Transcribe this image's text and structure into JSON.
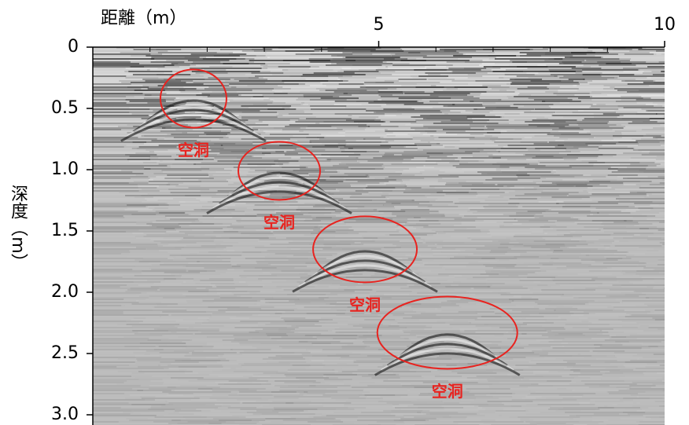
{
  "chart_data": {
    "type": "radargram",
    "x_label": "距離（m）",
    "y_label": "深度（m）",
    "xlim": [
      0,
      10
    ],
    "xticks": [
      5,
      10
    ],
    "xminor_ticks": [
      1,
      2,
      3,
      4,
      6,
      7,
      8,
      9
    ],
    "ylim": [
      0,
      3
    ],
    "y_inverted": true,
    "yticks": [
      0,
      0.5,
      {
        "value": 1,
        "label": "1.0"
      },
      1.5,
      {
        "value": 2,
        "label": "2.0"
      },
      2.5,
      {
        "value": 3,
        "label": "3.0"
      }
    ],
    "annotation_color": "#e8231f",
    "annotations": [
      {
        "text": "空洞",
        "x": 1.76,
        "y": 0.42
      },
      {
        "text": "空洞",
        "x": 3.26,
        "y": 1.01
      },
      {
        "text": "空洞",
        "x": 4.76,
        "y": 1.65
      },
      {
        "text": "空洞",
        "x": 6.2,
        "y": 2.33
      }
    ]
  }
}
